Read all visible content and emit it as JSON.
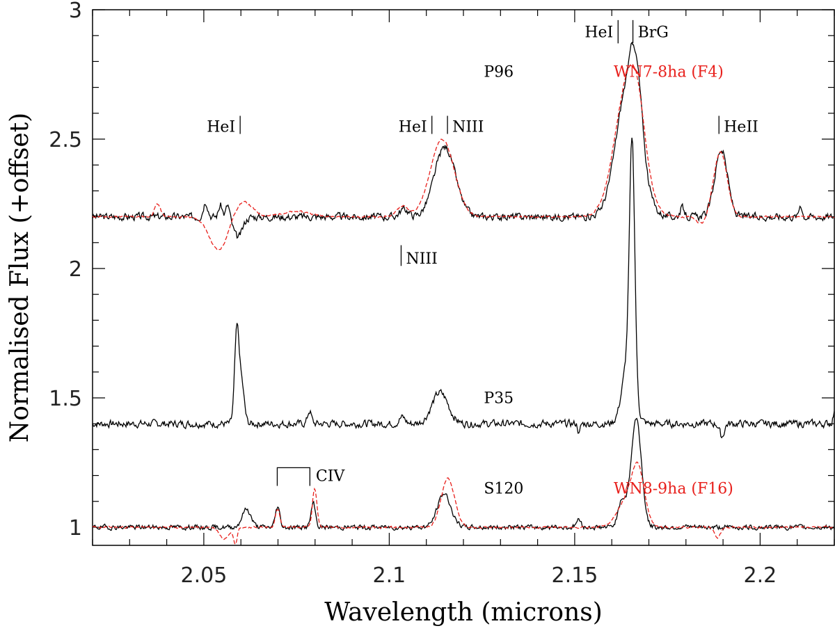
{
  "chart_data": {
    "type": "line",
    "xlabel": "Wavelength (microns)",
    "ylabel": "Normalised Flux (+offset)",
    "xlim": [
      2.02,
      2.22
    ],
    "ylim": [
      0.93,
      3.0
    ],
    "x_ticks": [
      2.05,
      2.1,
      2.15,
      2.2
    ],
    "x_tick_labels": [
      "2.05",
      "2.1",
      "2.15",
      "2.2"
    ],
    "y_ticks": [
      1,
      1.5,
      2,
      2.5,
      3
    ],
    "y_tick_labels": [
      "1",
      "1.5",
      "2",
      "2.5",
      "3"
    ],
    "colors": {
      "observed": "#000000",
      "model": "#e8201c"
    },
    "series": [
      {
        "name": "P96",
        "style": "solid",
        "color": "#000000",
        "baseline": 2.2,
        "noise": 0.012,
        "noise_seed": 3,
        "label": "P96",
        "label_x": 2.1255,
        "label_y": 2.74,
        "features": [
          {
            "center": 2.0505,
            "amp": 0.06,
            "width": 0.0006
          },
          {
            "center": 2.0545,
            "amp": 0.045,
            "width": 0.0005
          },
          {
            "center": 2.0565,
            "amp": 0.05,
            "width": 0.0005
          },
          {
            "center": 2.0592,
            "amp": -0.08,
            "width": 0.0012
          },
          {
            "center": 2.104,
            "amp": 0.03,
            "width": 0.0012
          },
          {
            "center": 2.115,
            "amp": 0.27,
            "width": 0.0028
          },
          {
            "center": 2.1645,
            "amp": 0.52,
            "width": 0.0032
          },
          {
            "center": 2.1653,
            "amp": 0.07,
            "width": 0.0004
          },
          {
            "center": 2.1668,
            "amp": 0.2,
            "width": 0.0014
          },
          {
            "center": 2.179,
            "amp": 0.035,
            "width": 0.0006
          },
          {
            "center": 2.1895,
            "amp": 0.26,
            "width": 0.0017
          },
          {
            "center": 2.2109,
            "amp": 0.05,
            "width": 0.0004
          }
        ]
      },
      {
        "name": "WN7-8ha (F4)",
        "style": "dashed",
        "color": "#e8201c",
        "baseline": 2.2,
        "noise": 0.003,
        "noise_seed": 11,
        "label": "WN7-8ha (F4)",
        "label_x": 2.1605,
        "label_y": 2.74,
        "features": [
          {
            "center": 2.0375,
            "amp": 0.05,
            "width": 0.0008
          },
          {
            "center": 2.054,
            "amp": -0.13,
            "width": 0.0025
          },
          {
            "center": 2.0605,
            "amp": 0.06,
            "width": 0.0025
          },
          {
            "center": 2.075,
            "amp": 0.02,
            "width": 0.004
          },
          {
            "center": 2.1035,
            "amp": 0.04,
            "width": 0.0015
          },
          {
            "center": 2.1143,
            "amp": 0.3,
            "width": 0.0032
          },
          {
            "center": 2.1645,
            "amp": 0.52,
            "width": 0.0036
          },
          {
            "center": 2.167,
            "amp": 0.12,
            "width": 0.002
          },
          {
            "center": 2.1842,
            "amp": -0.03,
            "width": 0.0012
          },
          {
            "center": 2.1893,
            "amp": 0.25,
            "width": 0.0018
          }
        ]
      },
      {
        "name": "P35",
        "style": "solid",
        "color": "#000000",
        "baseline": 1.4,
        "noise": 0.012,
        "noise_seed": 7,
        "label": "P35",
        "label_x": 2.1255,
        "label_y": 1.48,
        "features": [
          {
            "center": 2.0589,
            "amp": 0.35,
            "width": 0.0006
          },
          {
            "center": 2.0602,
            "amp": 0.15,
            "width": 0.0007
          },
          {
            "center": 2.0785,
            "amp": 0.05,
            "width": 0.0005
          },
          {
            "center": 2.1035,
            "amp": 0.025,
            "width": 0.0008
          },
          {
            "center": 2.1137,
            "amp": 0.12,
            "width": 0.0022
          },
          {
            "center": 2.1645,
            "amp": 0.25,
            "width": 0.0016
          },
          {
            "center": 2.1655,
            "amp": 0.9,
            "width": 0.0007
          },
          {
            "center": 2.1512,
            "amp": -0.04,
            "width": 0.0003
          },
          {
            "center": 2.1897,
            "amp": -0.05,
            "width": 0.0006
          },
          {
            "center": 2.22,
            "amp": 0.04,
            "width": 0.0004
          }
        ]
      },
      {
        "name": "S120",
        "style": "solid",
        "color": "#000000",
        "baseline": 1.0,
        "noise": 0.008,
        "noise_seed": 19,
        "label": "S120",
        "label_x": 2.1255,
        "label_y": 1.13,
        "features": [
          {
            "center": 2.0615,
            "amp": 0.07,
            "width": 0.0012
          },
          {
            "center": 2.0699,
            "amp": 0.08,
            "width": 0.0006
          },
          {
            "center": 2.0795,
            "amp": 0.09,
            "width": 0.0006
          },
          {
            "center": 2.1148,
            "amp": 0.13,
            "width": 0.0018
          },
          {
            "center": 2.151,
            "amp": 0.03,
            "width": 0.0006
          },
          {
            "center": 2.1628,
            "amp": 0.1,
            "width": 0.0011
          },
          {
            "center": 2.1666,
            "amp": 0.42,
            "width": 0.0014
          }
        ]
      },
      {
        "name": "WN8-9ha (F16)",
        "style": "dashed",
        "color": "#e8201c",
        "baseline": 1.0,
        "noise": 0.003,
        "noise_seed": 23,
        "label": "WN8-9ha (F16)",
        "label_x": 2.1605,
        "label_y": 1.13,
        "features": [
          {
            "center": 2.0555,
            "amp": -0.045,
            "width": 0.0012
          },
          {
            "center": 2.0585,
            "amp": -0.06,
            "width": 0.0005
          },
          {
            "center": 2.0699,
            "amp": 0.07,
            "width": 0.0006
          },
          {
            "center": 2.0799,
            "amp": 0.15,
            "width": 0.0006
          },
          {
            "center": 2.1158,
            "amp": 0.19,
            "width": 0.0018
          },
          {
            "center": 2.1648,
            "amp": 0.12,
            "width": 0.0028
          },
          {
            "center": 2.1672,
            "amp": 0.16,
            "width": 0.0016
          },
          {
            "center": 2.1885,
            "amp": -0.04,
            "width": 0.0008
          }
        ]
      }
    ],
    "line_ids": [
      {
        "label": "HeI",
        "x": 2.0598,
        "y0": 2.52,
        "y1": 2.59,
        "text_side": "left",
        "text_y": 2.55
      },
      {
        "label": "HeI",
        "x": 2.1115,
        "y0": 2.52,
        "y1": 2.59,
        "text_side": "left",
        "text_y": 2.55
      },
      {
        "label": "NIII",
        "x": 2.1157,
        "y0": 2.52,
        "y1": 2.59,
        "text_side": "right",
        "text_y": 2.55
      },
      {
        "label": "HeI",
        "x": 2.1617,
        "y0": 2.87,
        "y1": 2.96,
        "text_side": "left",
        "text_y": 2.915
      },
      {
        "label": "BrG",
        "x": 2.1657,
        "y0": 2.87,
        "y1": 2.96,
        "text_side": "right",
        "text_y": 2.915
      },
      {
        "label": "HeII",
        "x": 2.1889,
        "y0": 2.52,
        "y1": 2.59,
        "text_side": "right",
        "text_y": 2.55
      },
      {
        "label": "NIII",
        "x": 2.1032,
        "y0": 2.01,
        "y1": 2.09,
        "text_side": "right",
        "text_y": 2.04
      }
    ],
    "civ_bracket": {
      "label": "CIV",
      "x0": 2.0698,
      "x1": 2.0786,
      "y_top": 1.23,
      "y_bottom": 1.16,
      "text_x": 2.0802,
      "text_y": 1.2
    }
  }
}
